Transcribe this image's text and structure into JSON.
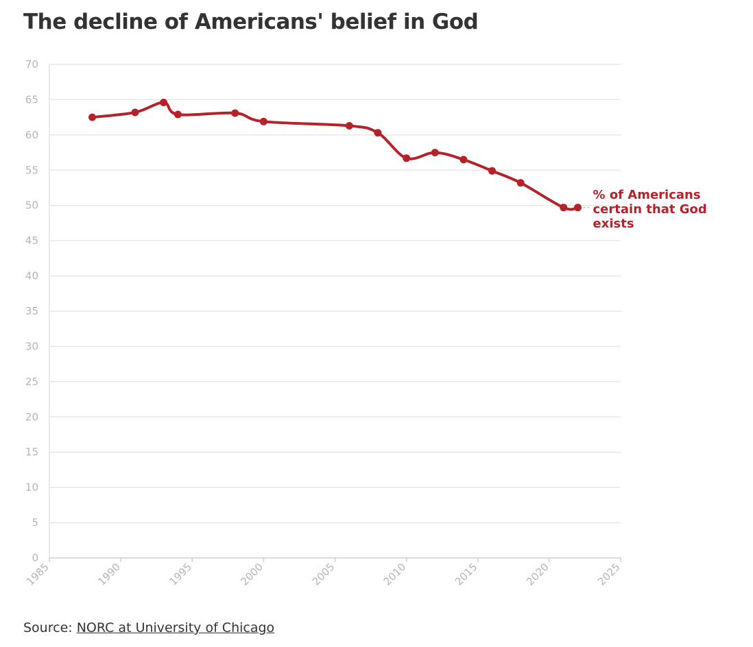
{
  "title": "The decline of Americans' belief in God",
  "source": {
    "prefix": "Source: ",
    "link_text": "NORC at University of Chicago"
  },
  "colors": {
    "series": "#b5222a",
    "grid": "#e6e6e6",
    "tick_text": "#b5b5b5",
    "title": "#333333"
  },
  "chart_data": {
    "type": "line",
    "title": "The decline of Americans' belief in God",
    "xlabel": "",
    "ylabel": "",
    "xlim": [
      1985,
      2025
    ],
    "ylim": [
      0,
      70
    ],
    "x_ticks": [
      "1985",
      "1990",
      "1995",
      "2000",
      "2005",
      "2010",
      "2015",
      "2020",
      "2025"
    ],
    "y_ticks": [
      "0",
      "5",
      "10",
      "15",
      "20",
      "25",
      "30",
      "35",
      "40",
      "45",
      "50",
      "55",
      "60",
      "65",
      "70"
    ],
    "grid": true,
    "legend": "direct label at end of line",
    "series": [
      {
        "name": "% of Americans certain that God exists",
        "label_lines": [
          "% of Americans",
          "certain that God",
          "exists"
        ],
        "x": [
          1988,
          1991,
          1993,
          1994,
          1998,
          2000,
          2006,
          2008,
          2010,
          2012,
          2014,
          2016,
          2018,
          2021,
          2022
        ],
        "y": [
          62.5,
          63.2,
          64.6,
          62.9,
          63.1,
          61.9,
          61.3,
          60.3,
          56.7,
          57.5,
          56.5,
          54.9,
          53.2,
          49.7,
          49.7
        ]
      }
    ]
  }
}
